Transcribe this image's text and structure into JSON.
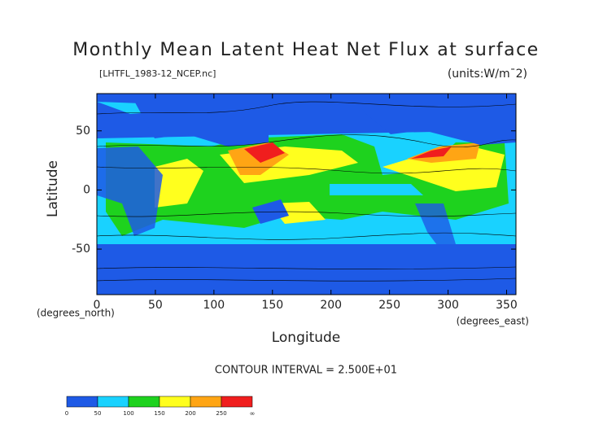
{
  "chart_data": {
    "type": "contour",
    "title": "Monthly Mean Latent Heat Net Flux at surface",
    "subtitle": "[LHTFL_1983-12_NCEP.nc]",
    "units": "(units:W/m¯2)",
    "xlabel": "Longitude",
    "ylabel": "Latitude",
    "xunit": "(degrees_east)",
    "yunit": "(degrees_north)",
    "note": "CONTOUR INTERVAL = 2.500E+01",
    "xlim": [
      0,
      358
    ],
    "ylim": [
      -88.5,
      81.5
    ],
    "xticks": [
      0,
      50,
      100,
      150,
      200,
      250,
      300,
      350
    ],
    "yticks": [
      -50,
      0,
      50
    ],
    "colorbar": {
      "levels": [
        0,
        50,
        100,
        150,
        200,
        250
      ],
      "top_label": "∞",
      "colors": [
        "#1e5ae6",
        "#19d2ff",
        "#1ed21e",
        "#ffff1e",
        "#ffa514",
        "#f01e1e"
      ]
    }
  }
}
